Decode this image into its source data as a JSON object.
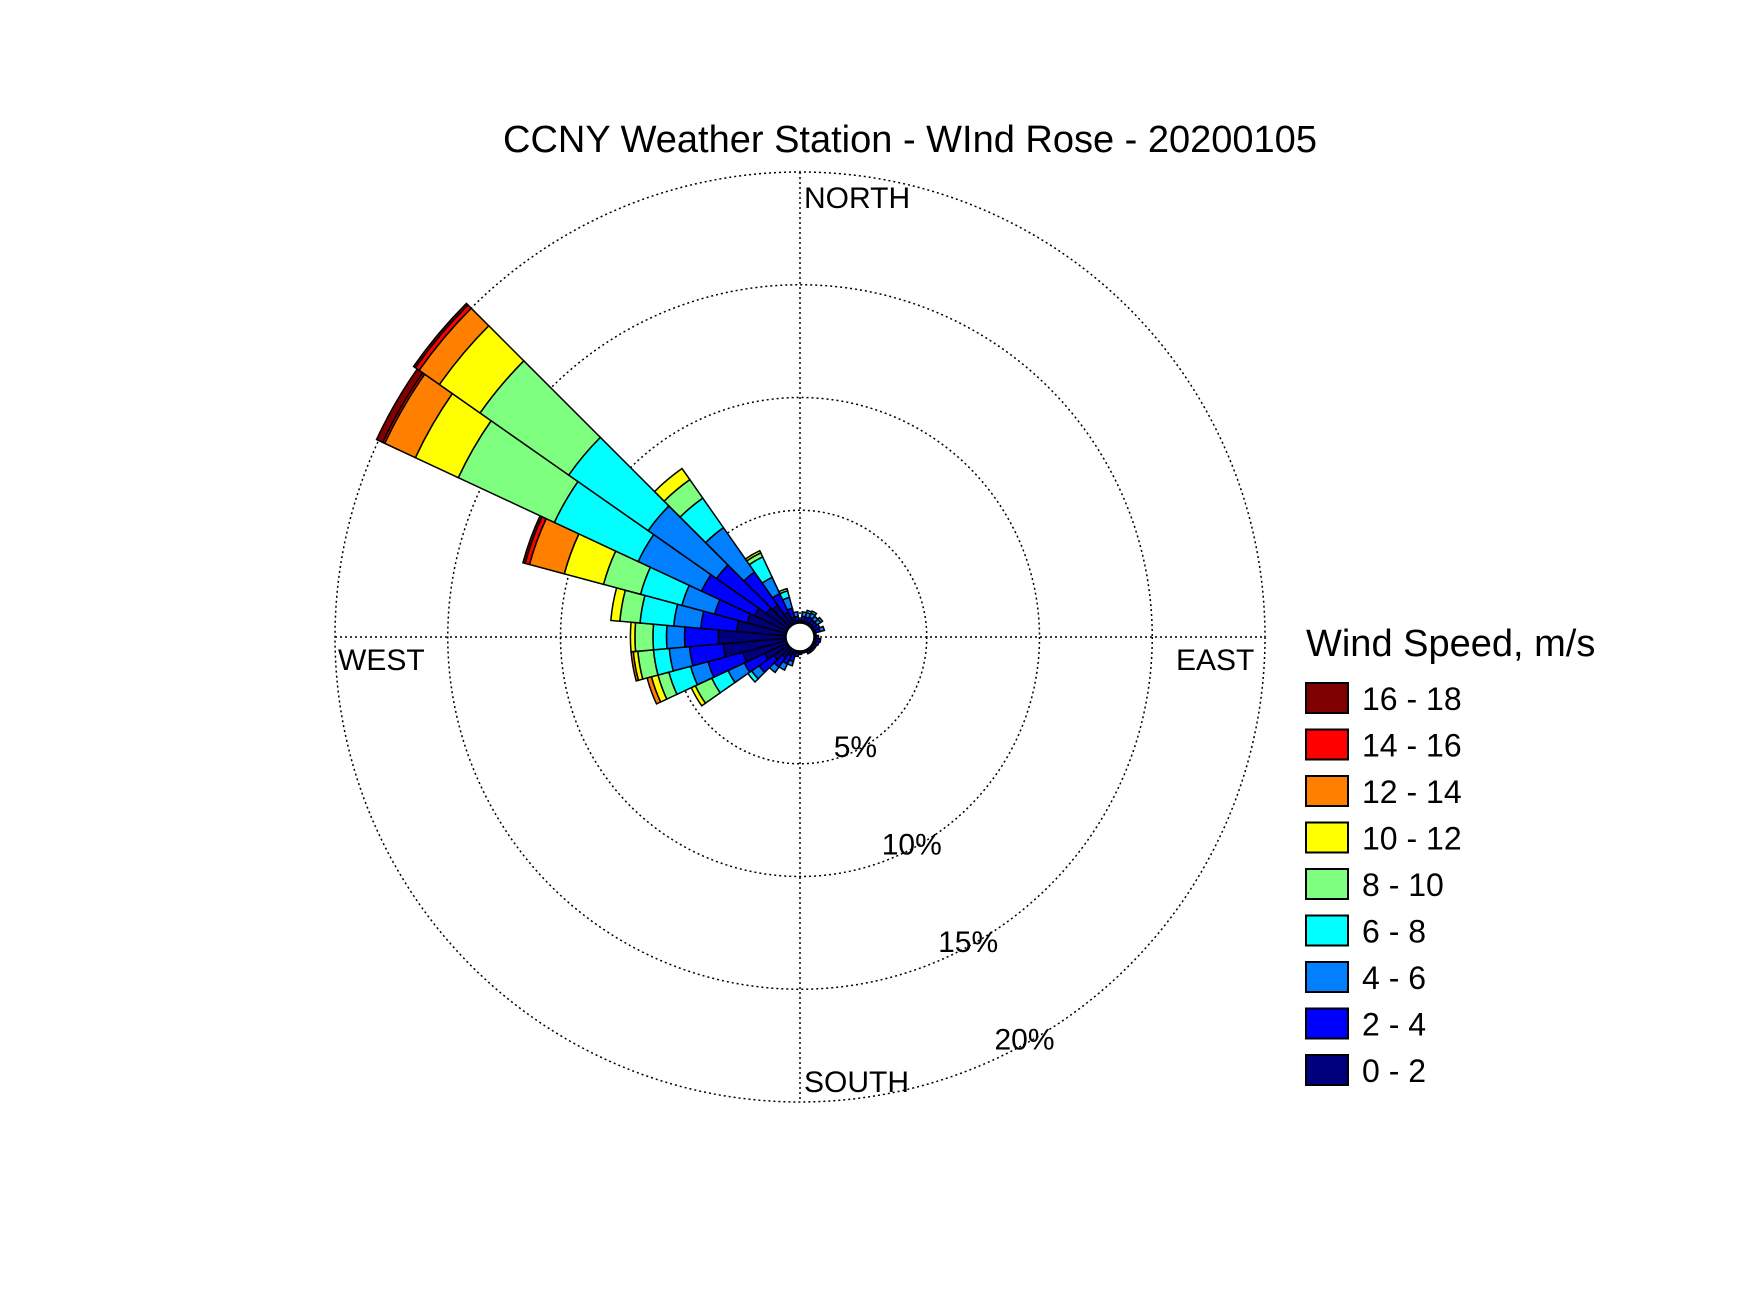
{
  "chart_data": {
    "type": "wind-rose",
    "title": "CCNY Weather Station - WInd Rose - 20200105",
    "direction_labels": {
      "north": "NORTH",
      "east": "EAST",
      "south": "SOUTH",
      "west": "WEST"
    },
    "radial_ticks": [
      5,
      10,
      15,
      20
    ],
    "radial_tick_labels": [
      "5%",
      "10%",
      "15%",
      "20%"
    ],
    "radial_max": 20,
    "legend_title": "Wind Speed, m/s",
    "legend_placement": "right",
    "speed_bins": [
      {
        "label": "0 - 2",
        "color": "#00007f"
      },
      {
        "label": "2 - 4",
        "color": "#0000ff"
      },
      {
        "label": "4 - 6",
        "color": "#007fff"
      },
      {
        "label": "6 - 8",
        "color": "#00ffff"
      },
      {
        "label": "8 - 10",
        "color": "#7fff7f"
      },
      {
        "label": "10 - 12",
        "color": "#ffff00"
      },
      {
        "label": "12 - 14",
        "color": "#ff7f00"
      },
      {
        "label": "14 - 16",
        "color": "#ff0000"
      },
      {
        "label": "16 - 18",
        "color": "#7f0000"
      }
    ],
    "sector_width_deg": 10,
    "sectors": [
      {
        "direction_deg": 0,
        "cumulative": [
          0.05,
          0.15
        ]
      },
      {
        "direction_deg": 10,
        "cumulative": [
          0.1,
          0.3,
          0.5
        ]
      },
      {
        "direction_deg": 20,
        "cumulative": [
          0.1,
          0.3,
          0.5,
          0.6
        ]
      },
      {
        "direction_deg": 30,
        "cumulative": [
          0.1,
          0.35,
          0.55,
          0.65
        ]
      },
      {
        "direction_deg": 40,
        "cumulative": [
          0.1,
          0.3,
          0.5
        ]
      },
      {
        "direction_deg": 50,
        "cumulative": [
          0.1,
          0.3,
          0.5,
          0.6
        ]
      },
      {
        "direction_deg": 60,
        "cumulative": [
          0.1,
          0.35
        ]
      },
      {
        "direction_deg": 70,
        "cumulative": [
          0.1,
          0.3,
          0.5
        ]
      },
      {
        "direction_deg": 80,
        "cumulative": [
          0.1
        ]
      },
      {
        "direction_deg": 90,
        "cumulative": [
          0.1,
          0.2
        ]
      },
      {
        "direction_deg": 100,
        "cumulative": [
          0.1,
          0.3
        ]
      },
      {
        "direction_deg": 110,
        "cumulative": [
          0.1,
          0.25
        ]
      },
      {
        "direction_deg": 120,
        "cumulative": [
          0.1,
          0.2
        ]
      },
      {
        "direction_deg": 130,
        "cumulative": [
          0.1,
          0.2
        ]
      },
      {
        "direction_deg": 140,
        "cumulative": [
          0.1,
          0.2
        ]
      },
      {
        "direction_deg": 150,
        "cumulative": [
          0.1,
          0.2
        ]
      },
      {
        "direction_deg": 160,
        "cumulative": [
          0.1
        ]
      },
      {
        "direction_deg": 170,
        "cumulative": [
          0.1
        ]
      },
      {
        "direction_deg": 180,
        "cumulative": [
          0.1,
          0.15
        ]
      },
      {
        "direction_deg": 190,
        "cumulative": [
          0.1,
          0.25
        ]
      },
      {
        "direction_deg": 200,
        "cumulative": [
          0.2,
          0.5,
          0.7
        ]
      },
      {
        "direction_deg": 210,
        "cumulative": [
          0.3,
          0.7,
          1.0
        ]
      },
      {
        "direction_deg": 220,
        "cumulative": [
          0.5,
          1.0,
          1.3
        ]
      },
      {
        "direction_deg": 230,
        "cumulative": [
          0.8,
          1.6,
          2.0,
          2.2
        ]
      },
      {
        "direction_deg": 240,
        "cumulative": [
          1.1,
          2.1,
          2.9,
          3.7,
          4.5,
          4.7
        ]
      },
      {
        "direction_deg": 250,
        "cumulative": [
          2.0,
          3.6,
          4.4,
          5.4,
          5.9,
          6.2,
          6.4
        ]
      },
      {
        "direction_deg": 260,
        "cumulative": [
          2.8,
          4.3,
          5.2,
          5.9,
          6.6,
          6.8,
          6.9
        ]
      },
      {
        "direction_deg": 270,
        "cumulative": [
          3.0,
          4.5,
          5.3,
          5.9,
          6.7,
          6.9
        ]
      },
      {
        "direction_deg": 280,
        "cumulative": [
          2.2,
          3.8,
          5.0,
          6.5,
          7.4,
          7.8
        ]
      },
      {
        "direction_deg": 290,
        "cumulative": [
          1.8,
          3.3,
          4.8,
          6.7,
          8.4,
          10.2,
          11.8,
          12.0,
          12.1
        ]
      },
      {
        "direction_deg": 300,
        "cumulative": [
          1.6,
          4.2,
          7.3,
          11.4,
          16.1,
          18.2,
          19.7,
          19.8,
          20.1
        ]
      },
      {
        "direction_deg": 310,
        "cumulative": [
          1.2,
          3.9,
          7.6,
          11.9,
          16.7,
          18.9,
          20.0,
          20.2,
          20.3
        ]
      },
      {
        "direction_deg": 320,
        "cumulative": [
          1.1,
          2.9,
          5.3,
          6.9,
          7.9,
          8.5
        ]
      },
      {
        "direction_deg": 330,
        "cumulative": [
          0.6,
          1.5,
          2.3,
          3.3,
          3.5,
          3.6
        ]
      },
      {
        "direction_deg": 340,
        "cumulative": [
          0.3,
          0.7,
          1.2,
          1.5,
          1.6
        ]
      },
      {
        "direction_deg": 350,
        "cumulative": [
          0.1,
          0.3,
          0.5
        ]
      }
    ]
  }
}
